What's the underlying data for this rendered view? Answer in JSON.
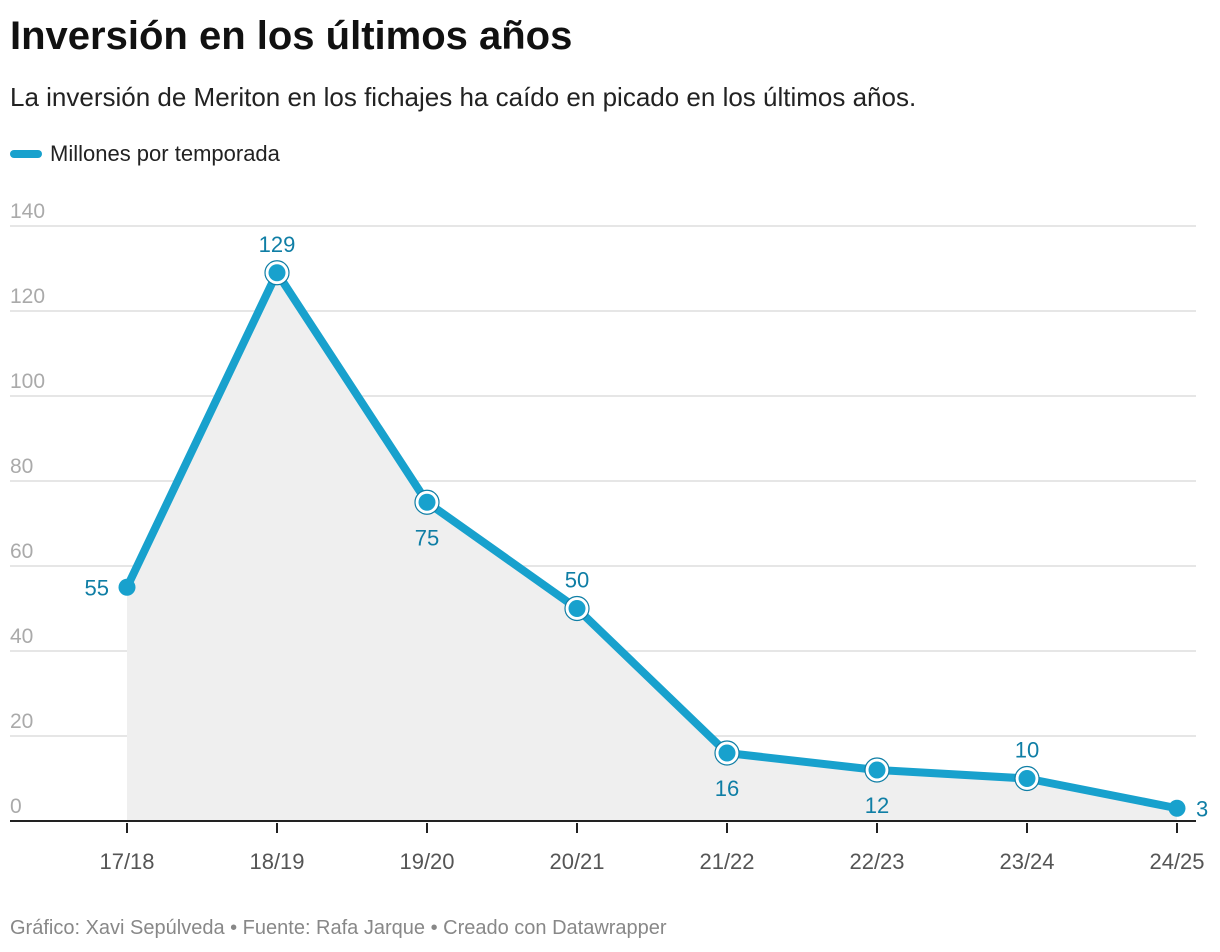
{
  "title": "Inversión en los últimos años",
  "subtitle": "La inversión de Meriton en los fichajes ha caído en picado en los últimos años.",
  "footer": {
    "text": "Gráfico: Xavi Sepúlveda • Fuente: Rafa Jarque • Creado con Datawrapper"
  },
  "colors": {
    "line": "#18a1cd",
    "area": "#efefef",
    "label": "#0f7ea5",
    "grid": "#dddddd",
    "axis": "#222222"
  },
  "chart_data": {
    "type": "line",
    "categories": [
      "17/18",
      "18/19",
      "19/20",
      "20/21",
      "21/22",
      "22/23",
      "23/24",
      "24/25"
    ],
    "series": [
      {
        "name": "Millones por temporada",
        "values": [
          55,
          129,
          75,
          50,
          16,
          12,
          10,
          3
        ]
      }
    ],
    "data_labels": [
      "55",
      "129",
      "75",
      "50",
      "16",
      "12",
      "10",
      "3"
    ],
    "ylim": [
      0,
      140
    ],
    "yticks": [
      0,
      20,
      40,
      60,
      80,
      100,
      120,
      140
    ],
    "ytick_labels": [
      "0",
      "20",
      "40",
      "60",
      "80",
      "100",
      "120",
      "140"
    ],
    "area_fill": true,
    "grid": true,
    "legend": "top-left"
  }
}
